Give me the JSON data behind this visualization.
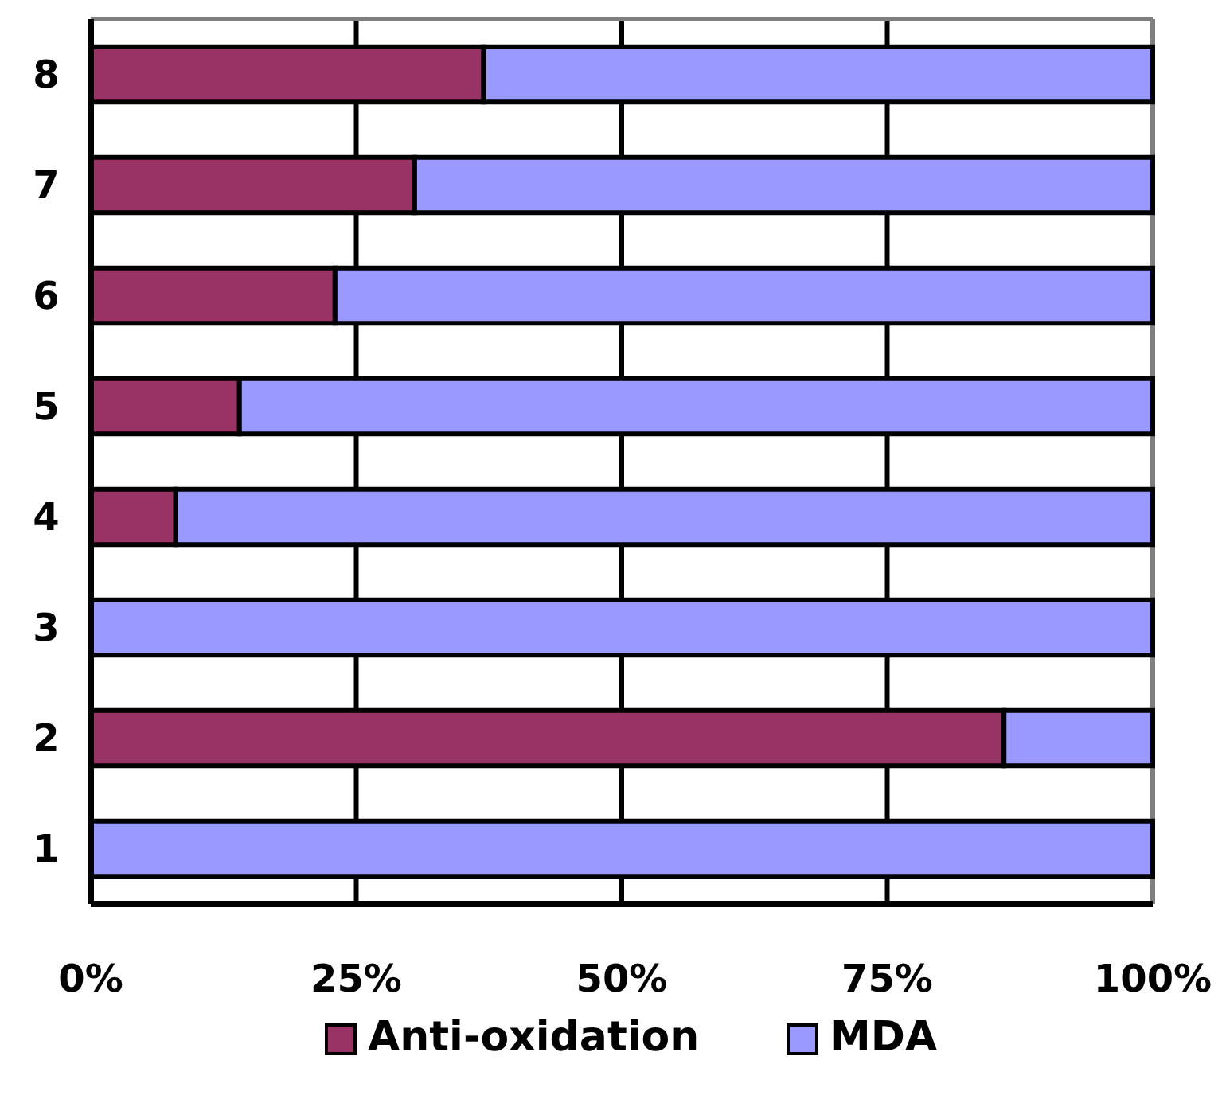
{
  "chart_data": {
    "type": "bar",
    "orientation": "horizontal",
    "stacked": true,
    "categories": [
      "8",
      "7",
      "6",
      "5",
      "4",
      "3",
      "2",
      "1"
    ],
    "series": [
      {
        "name": "Anti-oxidation",
        "color": "#993366",
        "values": [
          37,
          30.5,
          23,
          14,
          8,
          0,
          86,
          0
        ]
      },
      {
        "name": "MDA",
        "color": "#9999ff",
        "values": [
          63,
          69.5,
          77,
          86,
          92,
          100,
          14,
          100
        ]
      }
    ],
    "xlim": [
      0,
      100
    ],
    "xticks": [
      {
        "value": 0,
        "label": "0%"
      },
      {
        "value": 25,
        "label": "25%"
      },
      {
        "value": 50,
        "label": "50%"
      },
      {
        "value": 75,
        "label": "75%"
      },
      {
        "value": 100,
        "label": "100%"
      }
    ],
    "grid": "x",
    "legend": "bottom"
  }
}
